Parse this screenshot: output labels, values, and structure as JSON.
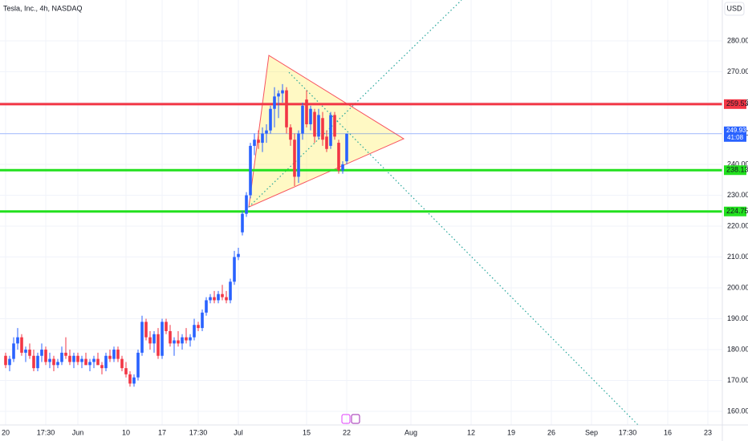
{
  "chart_data": {
    "type": "candlestick",
    "title": "Tesla, Inc., 4h, NASDAQ",
    "currency": "USD",
    "up_color": "#2962ff",
    "down_color": "#f23645",
    "x": [
      0,
      1,
      2,
      3,
      4,
      5,
      6,
      7,
      8,
      9,
      10,
      11,
      12,
      13,
      14,
      15,
      16,
      17,
      18,
      19,
      20,
      21,
      22,
      23,
      24,
      25,
      26,
      27,
      28,
      29,
      30,
      31,
      32,
      33,
      34,
      35,
      36,
      37,
      38,
      39,
      40,
      41,
      42,
      43,
      44,
      45,
      46,
      47,
      48,
      49,
      50,
      51,
      52,
      53,
      54,
      55,
      56,
      57,
      58,
      59,
      60,
      61,
      62,
      63,
      64,
      65,
      66,
      67,
      68,
      69,
      70,
      71,
      72,
      73,
      74,
      75,
      76,
      77,
      78,
      79,
      80,
      81,
      82,
      83,
      84,
      85
    ],
    "open": [
      178,
      175,
      177,
      182,
      184,
      179,
      180,
      178,
      174,
      178,
      180,
      176,
      177,
      175,
      176,
      179,
      178,
      176,
      178,
      176,
      177,
      175,
      176,
      177,
      175,
      174,
      178,
      177,
      180,
      177,
      174,
      172,
      169,
      171,
      179,
      189,
      184,
      182,
      185,
      178,
      189,
      186,
      182,
      183,
      182,
      184,
      183,
      184,
      188,
      187,
      192,
      196,
      197,
      196,
      198,
      197,
      196,
      202,
      210,
      218,
      224,
      230,
      246,
      248,
      247,
      250,
      251,
      258,
      262,
      263,
      264,
      252,
      248,
      236,
      250,
      261,
      253,
      257,
      249,
      255,
      249,
      246,
      256,
      247,
      238,
      241
    ],
    "high": [
      179,
      178,
      184,
      187,
      185,
      181,
      182,
      180,
      179,
      182,
      181,
      179,
      178,
      177,
      181,
      184,
      180,
      179,
      179,
      178,
      179,
      177,
      178,
      179,
      176,
      179,
      180,
      181,
      181,
      178,
      176,
      173,
      172,
      180,
      191,
      190,
      186,
      186,
      187,
      190,
      190,
      188,
      184,
      186,
      185,
      187,
      185,
      190,
      189,
      193,
      197,
      198,
      199,
      199,
      201,
      199,
      203,
      212,
      213,
      225,
      231,
      247,
      250,
      251,
      252,
      253,
      259,
      265,
      264,
      266,
      265,
      253,
      250,
      251,
      260,
      264,
      259,
      258,
      258,
      257,
      251,
      257,
      257,
      248,
      241,
      250
    ],
    "low": [
      174,
      173,
      176,
      180,
      178,
      176,
      177,
      173,
      173,
      176,
      175,
      174,
      173,
      174,
      175,
      177,
      175,
      174,
      175,
      174,
      175,
      173,
      174,
      175,
      172,
      173,
      176,
      176,
      176,
      173,
      171,
      168,
      168,
      170,
      178,
      183,
      180,
      179,
      177,
      177,
      185,
      181,
      178,
      181,
      180,
      182,
      181,
      183,
      186,
      186,
      191,
      195,
      195,
      195,
      196,
      195,
      195,
      201,
      209,
      217,
      223,
      229,
      243,
      245,
      244,
      247,
      250,
      252,
      255,
      260,
      250,
      246,
      233,
      234,
      248,
      252,
      251,
      247,
      248,
      246,
      244,
      245,
      248,
      237,
      237,
      240
    ],
    "close": [
      175,
      177,
      182,
      184,
      179,
      180,
      178,
      174,
      178,
      180,
      176,
      177,
      175,
      176,
      179,
      178,
      176,
      178,
      176,
      177,
      175,
      176,
      177,
      175,
      174,
      178,
      177,
      180,
      177,
      174,
      172,
      169,
      171,
      179,
      189,
      184,
      182,
      185,
      178,
      189,
      186,
      182,
      183,
      182,
      184,
      183,
      184,
      188,
      187,
      192,
      196,
      197,
      196,
      198,
      197,
      196,
      202,
      210,
      211,
      224,
      230,
      246,
      248,
      247,
      250,
      251,
      258,
      262,
      263,
      264,
      252,
      248,
      236,
      250,
      259,
      253,
      258,
      249,
      256,
      248,
      245,
      256,
      249,
      238,
      240,
      249.93
    ],
    "xlim": [
      -1.4,
      178.6
    ],
    "ylim": [
      155.6,
      293.25
    ],
    "xticks": [
      {
        "value": 0,
        "label": "20"
      },
      {
        "value": 10,
        "label": "17:30"
      },
      {
        "value": 18,
        "label": "Jun"
      },
      {
        "value": 30,
        "label": "10"
      },
      {
        "value": 39,
        "label": "17"
      },
      {
        "value": 48,
        "label": "17:30"
      },
      {
        "value": 58,
        "label": "Jul"
      },
      {
        "value": 75,
        "label": "15"
      },
      {
        "value": 85,
        "label": "22"
      },
      {
        "value": 101,
        "label": "Aug"
      },
      {
        "value": 116,
        "label": "12"
      },
      {
        "value": 126,
        "label": "19"
      },
      {
        "value": 136,
        "label": "26"
      },
      {
        "value": 146,
        "label": "Sep"
      },
      {
        "value": 155,
        "label": "17:30"
      },
      {
        "value": 165,
        "label": "16"
      },
      {
        "value": 175,
        "label": "23"
      }
    ],
    "yticks": [
      {
        "value": 160,
        "label": "160.00"
      },
      {
        "value": 170,
        "label": "170.00"
      },
      {
        "value": 180,
        "label": "180.00"
      },
      {
        "value": 190,
        "label": "190.00"
      },
      {
        "value": 200,
        "label": "200.00"
      },
      {
        "value": 210,
        "label": "210.00"
      },
      {
        "value": 220,
        "label": "220.00"
      },
      {
        "value": 230,
        "label": "230.00"
      },
      {
        "value": 240,
        "label": "240.00"
      },
      {
        "value": 250,
        "label": "250.00"
      },
      {
        "value": 260,
        "label": "260.00"
      },
      {
        "value": 270,
        "label": "270.00"
      },
      {
        "value": 280,
        "label": "280.00"
      }
    ],
    "levels": [
      {
        "value": 259.53,
        "color": "#f23645"
      },
      {
        "value": 238.13,
        "color": "#22e01e"
      },
      {
        "value": 224.75,
        "color": "#22e01e"
      }
    ],
    "last_price": 249.93,
    "countdown": "41:08",
    "triangle": {
      "x": [
        65.6,
        60.6,
        99.2
      ],
      "y": [
        275.3,
        226.2,
        248.3
      ]
    },
    "trend_lines": [
      {
        "x": [
          60.6,
          113.6
        ],
        "y": [
          226.2,
          293.2
        ]
      },
      {
        "x": [
          70.6,
          157.6
        ],
        "y": [
          269.8,
          155.6
        ]
      }
    ],
    "grid": true
  }
}
